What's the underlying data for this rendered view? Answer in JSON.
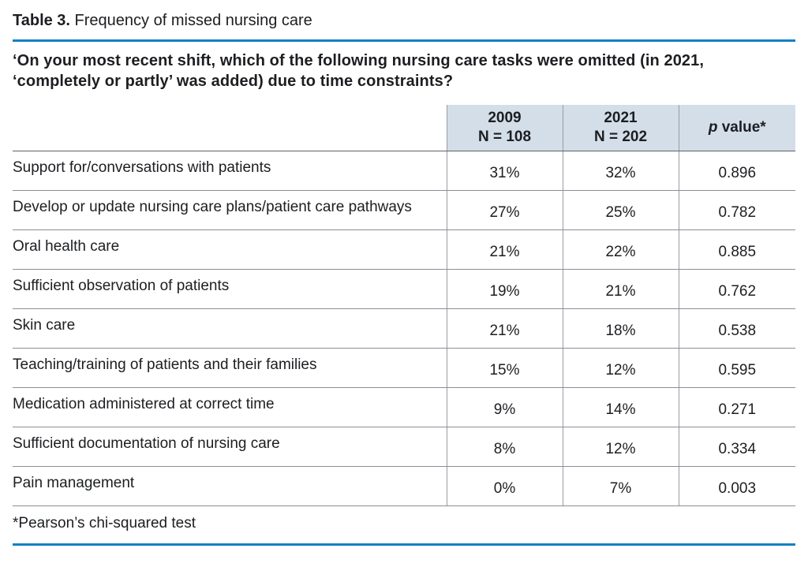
{
  "caption": {
    "label": "Table 3.",
    "text": " Frequency of missed nursing care"
  },
  "question": "‘On your most recent shift, which of the following nursing care tasks were omitted (in 2021, ‘completely or partly’ was added) due to time constraints?",
  "table": {
    "header": {
      "col2009": {
        "year": "2009",
        "n": "N = 108"
      },
      "col2021": {
        "year": "2021",
        "n": "N = 202"
      },
      "pvalue": {
        "italic": "p",
        "rest": " value*"
      }
    },
    "rows": [
      {
        "task": "Support for/conversations with patients",
        "y2009": "31%",
        "y2021": "32%",
        "p": "0.896"
      },
      {
        "task": "Develop or update nursing care plans/patient care pathways",
        "y2009": "27%",
        "y2021": "25%",
        "p": "0.782"
      },
      {
        "task": "Oral health care",
        "y2009": "21%",
        "y2021": "22%",
        "p": "0.885"
      },
      {
        "task": "Sufficient observation of patients",
        "y2009": "19%",
        "y2021": "21%",
        "p": "0.762"
      },
      {
        "task": "Skin care",
        "y2009": "21%",
        "y2021": "18%",
        "p": "0.538"
      },
      {
        "task": "Teaching/training of patients and their families",
        "y2009": "15%",
        "y2021": "12%",
        "p": "0.595"
      },
      {
        "task": "Medication administered at correct time",
        "y2009": "9%",
        "y2021": "14%",
        "p": "0.271"
      },
      {
        "task": "Sufficient documentation of nursing care",
        "y2009": "8%",
        "y2021": "12%",
        "p": "0.334"
      },
      {
        "task": "Pain management",
        "y2009": "0%",
        "y2021": "7%",
        "p": "0.003"
      }
    ],
    "footnote": "*Pearson’s chi-squared test"
  },
  "colors": {
    "accent_blue": "#1280c2",
    "header_bg": "#d3dee9"
  }
}
